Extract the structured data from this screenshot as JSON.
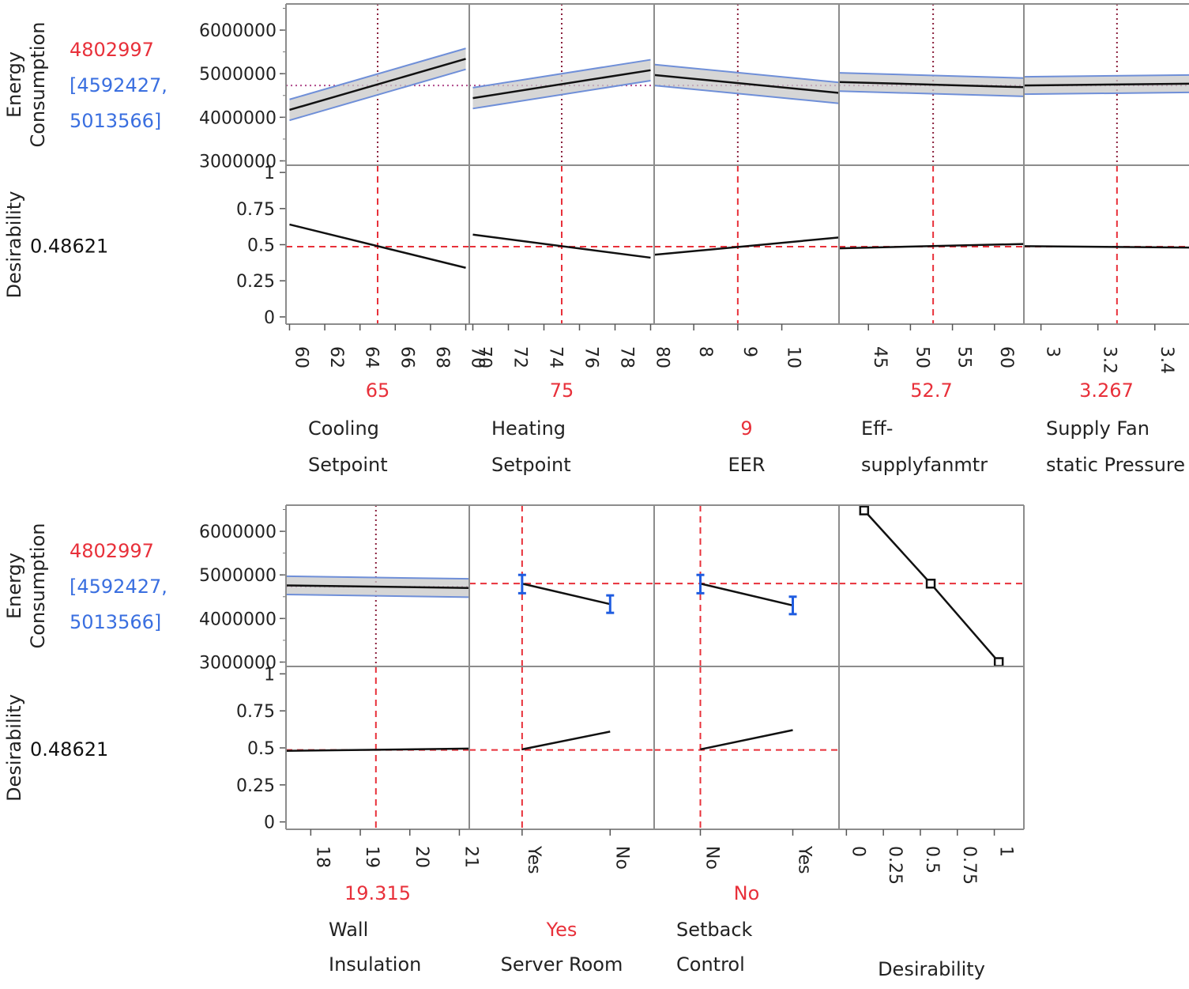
{
  "colors": {
    "current_value": "#e8303a",
    "interval": "#3a6fe0",
    "frame": "#8c8c8c",
    "trace": "#111111",
    "band_fill": "#c8c8c8",
    "band_edge": "#6f8fd8",
    "error_bar": "#1f5ce0"
  },
  "response": {
    "label_line1": "Energy",
    "label_line2": "Consumption",
    "value": "4802997",
    "ci_line1": "[4592427,",
    "ci_line2": "5013566]",
    "ylim": [
      2900000,
      6600000
    ],
    "ticks": [
      3000000,
      4000000,
      5000000,
      6000000
    ],
    "tick_labels": [
      "3000000",
      "4000000",
      "5000000",
      "6000000"
    ]
  },
  "desirability": {
    "label": "Desirability",
    "value": "0.48621",
    "ylim": [
      -0.05,
      1.05
    ],
    "ticks": [
      0,
      0.25,
      0.5,
      0.75,
      1
    ],
    "tick_labels": [
      "0",
      "0.25",
      "0.5",
      "0.75",
      "1"
    ]
  },
  "chart_data": [
    {
      "type": "line",
      "factor": "Cooling Setpoint",
      "label_lines": [
        "Cooling",
        "Setpoint"
      ],
      "current": "65",
      "current_x": 65,
      "xlim": [
        59.8,
        70.2
      ],
      "ticks": [
        60,
        62,
        64,
        66,
        68,
        70
      ],
      "tick_labels": [
        "60",
        "62",
        "64",
        "66",
        "68",
        "70"
      ],
      "energy": {
        "x": [
          60,
          70
        ],
        "y": [
          4170000,
          5340000
        ],
        "lower": [
          3930000,
          5100000
        ],
        "upper": [
          4410000,
          5580000
        ]
      },
      "desirability": {
        "x": [
          60,
          70
        ],
        "y": [
          0.64,
          0.34
        ]
      }
    },
    {
      "type": "line",
      "factor": "Heating Setpoint",
      "label_lines": [
        "Heating",
        "Setpoint"
      ],
      "current": "75",
      "current_x": 75,
      "xlim": [
        69.8,
        80.2
      ],
      "ticks": [
        70,
        72,
        74,
        76,
        78,
        80
      ],
      "tick_labels": [
        "70",
        "72",
        "74",
        "76",
        "78",
        "80"
      ],
      "energy": {
        "x": [
          70,
          80
        ],
        "y": [
          4440000,
          5080000
        ],
        "lower": [
          4200000,
          4840000
        ],
        "upper": [
          4680000,
          5320000
        ]
      },
      "desirability": {
        "x": [
          70,
          80
        ],
        "y": [
          0.57,
          0.41
        ]
      }
    },
    {
      "type": "line",
      "factor": "EER",
      "label_lines": [
        "EER"
      ],
      "current": "9",
      "current_label_row": 2,
      "current_x": 9,
      "xlim": [
        7.1,
        11.3
      ],
      "ticks": [
        8,
        9,
        10
      ],
      "tick_labels": [
        "8",
        "9",
        "10"
      ],
      "energy": {
        "x": [
          7.1,
          11.3
        ],
        "y": [
          4970000,
          4560000
        ],
        "lower": [
          4730000,
          4320000
        ],
        "upper": [
          5210000,
          4800000
        ]
      },
      "desirability": {
        "x": [
          7.1,
          11.3
        ],
        "y": [
          0.43,
          0.55
        ]
      }
    },
    {
      "type": "line",
      "factor": "Eff-supplyfanmtr",
      "label_lines": [
        "Eff-",
        "supplyfanmtr"
      ],
      "current": "52.7",
      "current_x": 52.7,
      "xlim": [
        41.5,
        63.5
      ],
      "ticks": [
        45,
        50,
        55,
        60
      ],
      "tick_labels": [
        "45",
        "50",
        "55",
        "60"
      ],
      "energy": {
        "x": [
          41.5,
          63.5
        ],
        "y": [
          4810000,
          4690000
        ],
        "lower": [
          4600000,
          4480000
        ],
        "upper": [
          5020000,
          4900000
        ]
      },
      "desirability": {
        "x": [
          41.5,
          63.5
        ],
        "y": [
          0.475,
          0.505
        ]
      }
    },
    {
      "type": "line",
      "factor": "Supply Fan static Pressure",
      "label_lines": [
        "Supply Fan",
        "static Pressure"
      ],
      "current": "3.267",
      "current_x": 3.267,
      "xlim": [
        2.94,
        3.52
      ],
      "ticks": [
        3,
        3.2,
        3.4
      ],
      "tick_labels": [
        "3",
        "3.2",
        "3.4"
      ],
      "energy": {
        "x": [
          2.94,
          3.52
        ],
        "y": [
          4730000,
          4770000
        ],
        "lower": [
          4530000,
          4570000
        ],
        "upper": [
          4930000,
          4970000
        ]
      },
      "desirability": {
        "x": [
          2.94,
          3.52
        ],
        "y": [
          0.49,
          0.48
        ]
      }
    },
    {
      "type": "line",
      "factor": "Wall Insulation",
      "label_lines": [
        "Wall",
        "Insulation"
      ],
      "current": "19.315",
      "current_x": 19.315,
      "xlim": [
        17.5,
        21.2
      ],
      "ticks": [
        18,
        19,
        20,
        21
      ],
      "tick_labels": [
        "18",
        "19",
        "20",
        "21"
      ],
      "energy": {
        "x": [
          17.5,
          21.2
        ],
        "y": [
          4760000,
          4700000
        ],
        "lower": [
          4550000,
          4490000
        ],
        "upper": [
          4970000,
          4910000
        ]
      },
      "desirability": {
        "x": [
          17.5,
          21.2
        ],
        "y": [
          0.48,
          0.495
        ]
      }
    },
    {
      "type": "scatter",
      "factor": "Server Room",
      "label_lines": [
        "Server Room"
      ],
      "current": "Yes",
      "current_label_row": 1,
      "current_x": 0,
      "xlim": [
        -0.6,
        1.5
      ],
      "ticks": [
        0,
        1
      ],
      "tick_labels": [
        "Yes",
        "No"
      ],
      "energy": {
        "x": [
          0,
          1
        ],
        "y": [
          4800000,
          4330000
        ],
        "lower": [
          4580000,
          4130000
        ],
        "upper": [
          5000000,
          4530000
        ]
      },
      "desirability": {
        "x": [
          0,
          1
        ],
        "y": [
          0.49,
          0.61
        ]
      }
    },
    {
      "type": "scatter",
      "factor": "Setback Control",
      "label_lines": [
        "Setback",
        "Control"
      ],
      "current": "No",
      "current_x": 0,
      "xlim": [
        -0.5,
        1.5
      ],
      "ticks": [
        0,
        1
      ],
      "tick_labels": [
        "No",
        "Yes"
      ],
      "energy": {
        "x": [
          0,
          1
        ],
        "y": [
          4800000,
          4300000
        ],
        "lower": [
          4580000,
          4100000
        ],
        "upper": [
          5000000,
          4500000
        ]
      },
      "desirability": {
        "x": [
          0,
          1
        ],
        "y": [
          0.49,
          0.62
        ]
      }
    },
    {
      "type": "line",
      "factor": "Desirability",
      "label_lines": [
        "Desirability"
      ],
      "current": "",
      "xlim": [
        -0.05,
        1.2
      ],
      "ticks": [
        0,
        0.25,
        0.5,
        0.75,
        1
      ],
      "tick_labels": [
        "0",
        "0.25",
        "0.5",
        "0.75",
        "1"
      ],
      "energy": {
        "x": [
          0.12,
          0.57,
          1.03
        ],
        "y": [
          6480000,
          4800000,
          3000000
        ],
        "markers": true
      }
    }
  ]
}
